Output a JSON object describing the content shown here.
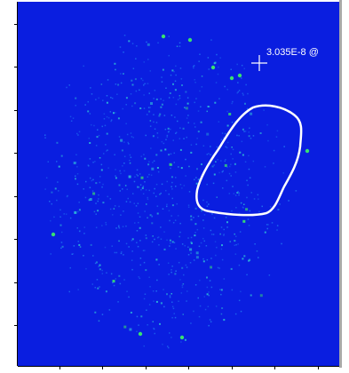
{
  "cursor_readout": {
    "value_text": "3.035E-8 @"
  },
  "colors": {
    "background": "#0a1ee0",
    "roi_outline": "#ffffff",
    "crosshair": "#ffffff",
    "speckle_low": "#1e6cf0",
    "speckle_mid": "#2bb0d8",
    "speckle_high": "#38e070"
  },
  "icons": {
    "crosshair": "crosshair-icon"
  }
}
